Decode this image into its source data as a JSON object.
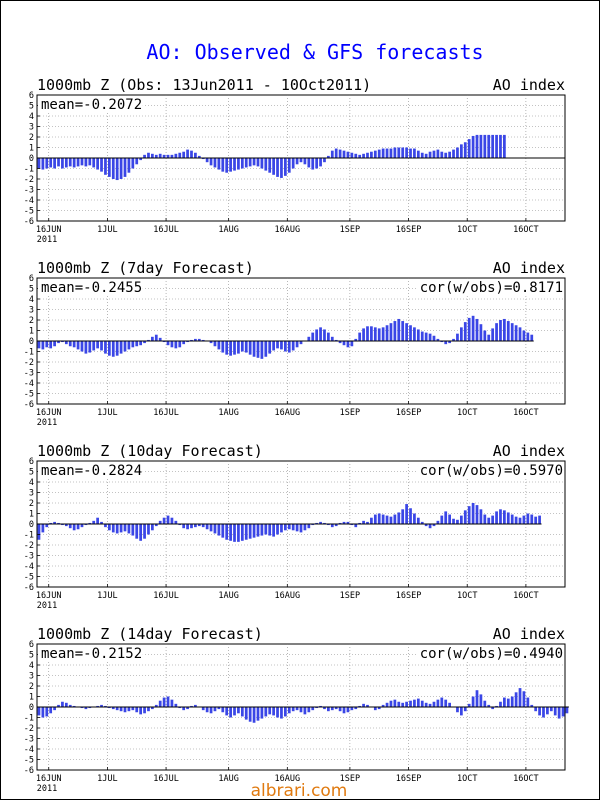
{
  "page": {
    "title": "AO: Observed & GFS forecasts",
    "watermark": "albrari.com",
    "title_color": "#0000ff",
    "bar_color": "#3a46e6",
    "watermark_color": "#e07a10"
  },
  "chart_data": [
    {
      "type": "bar",
      "title": "1000mb Z (Obs: 13Jun2011 - 10Oct2011)",
      "index_label": "AO index",
      "mean_label": "mean=-0.2072",
      "cor_label": "",
      "ylim": [
        -6,
        6
      ],
      "yticks": [
        "6",
        "5",
        "4",
        "3",
        "2",
        "1",
        "0",
        "-1",
        "-2",
        "-3",
        "-4",
        "-5",
        "-6"
      ],
      "xticks": [
        "16JUN",
        "1JUL",
        "16JUL",
        "1AUG",
        "16AUG",
        "1SEP",
        "16SEP",
        "1OCT",
        "16OCT"
      ],
      "xsub": "2011",
      "grid": true,
      "days": 135,
      "values": [
        -1.0,
        -1.1,
        -1.0,
        -0.9,
        -1.0,
        -0.8,
        -1.0,
        -0.9,
        -0.8,
        -0.9,
        -0.8,
        -0.7,
        -0.8,
        -0.7,
        -0.9,
        -1.1,
        -1.3,
        -1.6,
        -1.8,
        -2.0,
        -2.1,
        -2.0,
        -1.8,
        -1.4,
        -1.0,
        -0.6,
        -0.2,
        0.3,
        0.5,
        0.4,
        0.3,
        0.4,
        0.3,
        0.3,
        0.3,
        0.4,
        0.5,
        0.6,
        0.8,
        0.7,
        0.5,
        0.2,
        -0.1,
        -0.4,
        -0.7,
        -0.9,
        -1.1,
        -1.3,
        -1.4,
        -1.3,
        -1.2,
        -1.1,
        -1.0,
        -0.9,
        -0.8,
        -0.7,
        -0.8,
        -1.0,
        -1.2,
        -1.4,
        -1.6,
        -1.8,
        -1.9,
        -1.7,
        -1.4,
        -1.0,
        -0.6,
        -0.4,
        -0.6,
        -0.9,
        -1.1,
        -1.0,
        -0.8,
        -0.4,
        0.2,
        0.7,
        0.9,
        0.8,
        0.7,
        0.6,
        0.5,
        0.4,
        0.3,
        0.4,
        0.5,
        0.6,
        0.7,
        0.8,
        0.9,
        0.9,
        0.9,
        1.0,
        1.0,
        1.0,
        1.0,
        0.9,
        0.9,
        0.7,
        0.5,
        0.4,
        0.6,
        0.7,
        0.8,
        0.6,
        0.5,
        0.6,
        0.8,
        1.0,
        1.3,
        1.5,
        1.8,
        2.1,
        2.2,
        2.2,
        2.2,
        2.2,
        2.2,
        2.2,
        2.2,
        2.2
      ],
      "baseline_extends": true
    },
    {
      "type": "bar",
      "title": "1000mb Z (7day Forecast)",
      "index_label": "AO index",
      "mean_label": "mean=-0.2455",
      "cor_label": "cor(w/obs)=0.8171",
      "ylim": [
        -6,
        6
      ],
      "yticks": [
        "6",
        "5",
        "4",
        "3",
        "2",
        "1",
        "0",
        "-1",
        "-2",
        "-3",
        "-4",
        "-5",
        "-6"
      ],
      "xticks": [
        "16JUN",
        "1JUL",
        "16JUL",
        "1AUG",
        "16AUG",
        "1SEP",
        "16SEP",
        "1OCT",
        "16OCT"
      ],
      "xsub": "2011",
      "grid": true,
      "days": 135,
      "values": [
        -0.7,
        -0.8,
        -0.6,
        -0.7,
        -0.5,
        -0.2,
        -0.1,
        -0.3,
        -0.5,
        -0.6,
        -0.8,
        -1.0,
        -1.2,
        -1.1,
        -0.9,
        -0.7,
        -0.9,
        -1.2,
        -1.4,
        -1.5,
        -1.4,
        -1.2,
        -1.0,
        -0.8,
        -0.6,
        -0.5,
        -0.4,
        -0.2,
        0.1,
        0.4,
        0.6,
        0.3,
        -0.1,
        -0.4,
        -0.6,
        -0.7,
        -0.6,
        -0.3,
        -0.1,
        0.1,
        0.2,
        0.2,
        0.1,
        0.0,
        -0.2,
        -0.5,
        -0.8,
        -1.1,
        -1.3,
        -1.4,
        -1.3,
        -1.2,
        -1.0,
        -1.1,
        -1.3,
        -1.5,
        -1.6,
        -1.7,
        -1.5,
        -1.2,
        -0.9,
        -0.7,
        -0.8,
        -1.0,
        -1.1,
        -0.9,
        -0.6,
        -0.3,
        0.0,
        0.4,
        0.8,
        1.1,
        1.3,
        1.1,
        0.8,
        0.4,
        0.1,
        -0.2,
        -0.4,
        -0.6,
        -0.5,
        0.2,
        0.8,
        1.2,
        1.4,
        1.4,
        1.3,
        1.2,
        1.3,
        1.5,
        1.7,
        1.9,
        2.1,
        1.9,
        1.7,
        1.5,
        1.3,
        1.1,
        0.9,
        0.8,
        0.7,
        0.5,
        0.2,
        -0.1,
        -0.3,
        -0.2,
        0.2,
        0.7,
        1.3,
        1.8,
        2.2,
        2.4,
        2.1,
        1.6,
        1.0,
        0.6,
        1.2,
        1.7,
        2.0,
        2.1,
        1.9,
        1.7,
        1.5,
        1.3,
        1.0,
        0.8,
        0.6
      ]
    },
    {
      "type": "bar",
      "title": "1000mb Z (10day Forecast)",
      "index_label": "AO index",
      "mean_label": "mean=-0.2824",
      "cor_label": "cor(w/obs)=0.5970",
      "ylim": [
        -6,
        6
      ],
      "yticks": [
        "6",
        "5",
        "4",
        "3",
        "2",
        "1",
        "0",
        "-1",
        "-2",
        "-3",
        "-4",
        "-5",
        "-6"
      ],
      "xticks": [
        "16JUN",
        "1JUL",
        "16JUL",
        "1AUG",
        "16AUG",
        "1SEP",
        "16SEP",
        "1OCT",
        "16OCT"
      ],
      "xsub": "2011",
      "grid": true,
      "days": 135,
      "values": [
        -1.5,
        -0.8,
        -0.3,
        0.1,
        0.2,
        0.1,
        -0.1,
        -0.2,
        -0.4,
        -0.6,
        -0.5,
        -0.3,
        -0.1,
        0.1,
        0.3,
        0.6,
        0.2,
        -0.3,
        -0.6,
        -0.8,
        -0.9,
        -0.8,
        -0.7,
        -0.9,
        -1.1,
        -1.4,
        -1.6,
        -1.4,
        -1.0,
        -0.6,
        -0.2,
        0.3,
        0.6,
        0.8,
        0.6,
        0.3,
        -0.1,
        -0.4,
        -0.5,
        -0.4,
        -0.3,
        -0.2,
        -0.3,
        -0.5,
        -0.7,
        -0.9,
        -1.1,
        -1.3,
        -1.5,
        -1.6,
        -1.7,
        -1.7,
        -1.6,
        -1.5,
        -1.4,
        -1.3,
        -1.2,
        -1.1,
        -1.0,
        -1.1,
        -1.2,
        -1.0,
        -0.8,
        -0.6,
        -0.5,
        -0.6,
        -0.7,
        -0.8,
        -0.6,
        -0.4,
        -0.1,
        0.1,
        0.2,
        0.1,
        -0.1,
        -0.3,
        -0.2,
        0.1,
        0.2,
        0.2,
        -0.1,
        -0.3,
        0.1,
        0.3,
        0.2,
        0.6,
        0.9,
        1.0,
        0.9,
        0.8,
        0.7,
        0.9,
        1.1,
        1.4,
        1.9,
        1.5,
        1.0,
        0.6,
        0.2,
        -0.2,
        -0.4,
        -0.2,
        0.3,
        0.8,
        1.2,
        0.9,
        0.5,
        0.4,
        0.8,
        1.3,
        1.7,
        2.0,
        1.8,
        1.4,
        0.9,
        0.6,
        0.8,
        1.2,
        1.4,
        1.3,
        1.1,
        0.9,
        0.7,
        0.6,
        0.8,
        1.0,
        0.9,
        0.7,
        0.8
      ]
    },
    {
      "type": "bar",
      "title": "1000mb Z (14day Forecast)",
      "index_label": "AO index",
      "mean_label": "mean=-0.2152",
      "cor_label": "cor(w/obs)=0.4940",
      "ylim": [
        -6,
        6
      ],
      "yticks": [
        "6",
        "5",
        "4",
        "3",
        "2",
        "1",
        "0",
        "-1",
        "-2",
        "-3",
        "-4",
        "-5",
        "-6"
      ],
      "xticks": [
        "16JUN",
        "1JUL",
        "16JUL",
        "1AUG",
        "16AUG",
        "1SEP",
        "16SEP",
        "1OCT",
        "16OCT"
      ],
      "xsub": "2011",
      "grid": true,
      "days": 135,
      "values": [
        -0.8,
        -1.0,
        -0.9,
        -0.6,
        -0.3,
        0.2,
        0.5,
        0.4,
        0.2,
        0.1,
        0.0,
        -0.1,
        -0.2,
        -0.1,
        0.0,
        0.1,
        0.2,
        0.1,
        -0.1,
        -0.2,
        -0.3,
        -0.4,
        -0.5,
        -0.4,
        -0.3,
        -0.5,
        -0.7,
        -0.6,
        -0.4,
        -0.2,
        0.2,
        0.6,
        0.9,
        1.0,
        0.7,
        0.3,
        -0.1,
        -0.3,
        -0.2,
        0.1,
        0.2,
        0.0,
        -0.3,
        -0.5,
        -0.6,
        -0.4,
        -0.2,
        -0.5,
        -0.8,
        -1.0,
        -0.8,
        -0.6,
        -0.9,
        -1.2,
        -1.4,
        -1.5,
        -1.3,
        -1.1,
        -0.9,
        -0.7,
        -0.8,
        -1.0,
        -1.1,
        -0.9,
        -0.6,
        -0.4,
        -0.3,
        -0.5,
        -0.7,
        -0.5,
        -0.3,
        -0.1,
        0.1,
        -0.2,
        -0.4,
        -0.3,
        -0.2,
        -0.4,
        -0.6,
        -0.5,
        -0.3,
        -0.2,
        0.1,
        0.3,
        0.2,
        0.0,
        -0.3,
        -0.2,
        0.2,
        0.4,
        0.6,
        0.7,
        0.5,
        0.4,
        0.5,
        0.6,
        0.7,
        0.8,
        0.6,
        0.4,
        0.3,
        0.5,
        0.7,
        0.9,
        0.7,
        0.4,
        0.0,
        -0.5,
        -0.8,
        -0.4,
        0.3,
        1.0,
        1.6,
        1.2,
        0.6,
        0.2,
        -0.2,
        0.1,
        0.5,
        0.9,
        0.8,
        1.0,
        1.4,
        1.8,
        1.5,
        0.9,
        0.2,
        -0.4,
        -0.8,
        -1.0,
        -0.7,
        -0.4,
        -0.8,
        -1.1,
        -0.9,
        -0.6
      ]
    }
  ]
}
